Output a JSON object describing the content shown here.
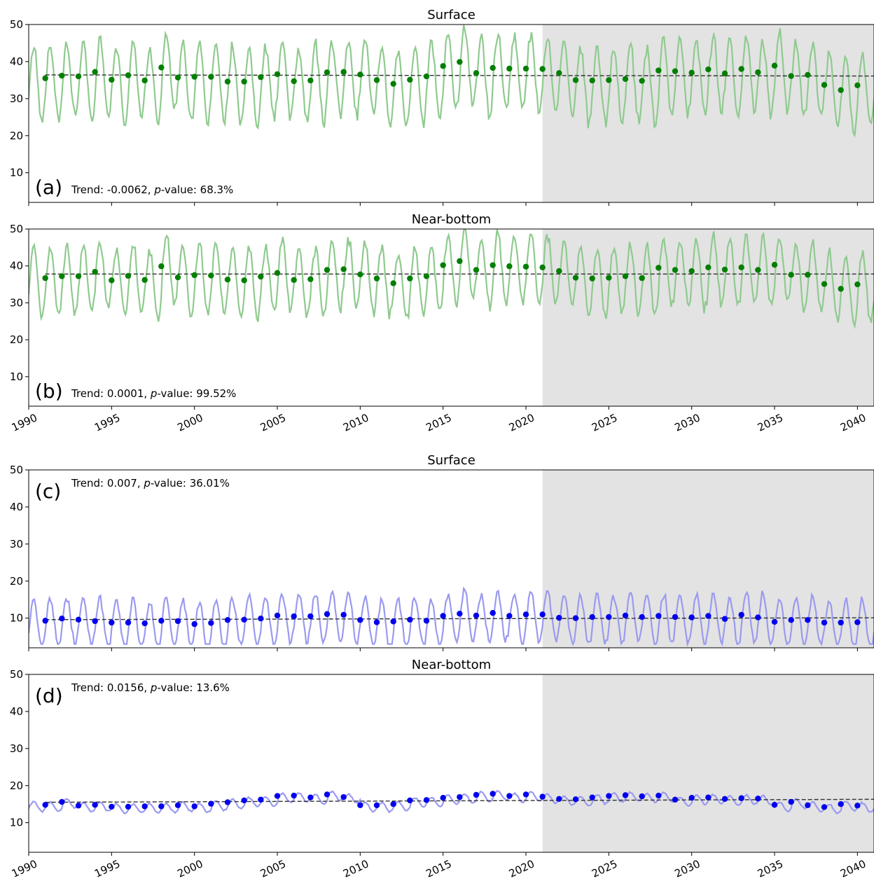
{
  "chart_data": [
    {
      "panel_label": "(a)",
      "type": "line",
      "title": "Surface",
      "ylim": [
        2,
        50
      ],
      "xlim": [
        1990,
        2041
      ],
      "yticks": [
        10,
        20,
        30,
        40,
        50
      ],
      "xticks": [
        1990,
        1995,
        2000,
        2005,
        2010,
        2015,
        2020,
        2025,
        2030,
        2035,
        2040
      ],
      "show_xtick_labels": false,
      "annotation": {
        "trend_prefix": "Trend: -0.0062, ",
        "p_italic": "p",
        "p_suffix": "-value: 68.3%"
      },
      "annotation_position": "bottom",
      "projection_start": 2021,
      "line_color": "#8fca8f",
      "dot_color": "#007f00",
      "monthly": {
        "mean": 35,
        "amplitude": 10
      },
      "trend_line": {
        "x": [
          1991,
          2041
        ],
        "y": [
          36.4,
          36.1
        ]
      },
      "annual_means": {
        "x": [
          1991,
          1992,
          1993,
          1994,
          1995,
          1996,
          1997,
          1998,
          1999,
          2000,
          2001,
          2002,
          2003,
          2004,
          2005,
          2006,
          2007,
          2008,
          2009,
          2010,
          2011,
          2012,
          2013,
          2014,
          2015,
          2016,
          2017,
          2018,
          2019,
          2020,
          2021,
          2022,
          2023,
          2024,
          2025,
          2026,
          2027,
          2028,
          2029,
          2030,
          2031,
          2032,
          2033,
          2034,
          2035,
          2036,
          2037,
          2038,
          2039,
          2040
        ],
        "y": [
          35.5,
          36.2,
          36.0,
          37.2,
          35.1,
          36.3,
          34.9,
          38.4,
          35.7,
          35.9,
          35.9,
          34.6,
          34.6,
          35.8,
          36.6,
          34.7,
          34.9,
          37.1,
          37.2,
          36.5,
          35.0,
          34.0,
          35.1,
          36.0,
          38.8,
          39.9,
          36.9,
          38.3,
          38.1,
          38.1,
          38.0,
          36.9,
          35.0,
          34.9,
          35.0,
          35.3,
          34.8,
          37.6,
          37.4,
          37.0,
          37.9,
          36.8,
          38.0,
          37.1,
          38.9,
          36.1,
          36.4,
          33.7,
          32.3,
          33.6
        ]
      }
    },
    {
      "panel_label": "(b)",
      "type": "line",
      "title": "Near-bottom",
      "ylim": [
        2,
        50
      ],
      "xlim": [
        1990,
        2041
      ],
      "yticks": [
        10,
        20,
        30,
        40,
        50
      ],
      "xticks": [
        1990,
        1995,
        2000,
        2005,
        2010,
        2015,
        2020,
        2025,
        2030,
        2035,
        2040
      ],
      "show_xtick_labels": true,
      "annotation": {
        "trend_prefix": "Trend: 0.0001, ",
        "p_italic": "p",
        "p_suffix": "-value: 99.52%"
      },
      "annotation_position": "bottom",
      "projection_start": 2021,
      "line_color": "#8fca8f",
      "dot_color": "#007f00",
      "monthly": {
        "mean": 37,
        "amplitude": 9
      },
      "trend_line": {
        "x": [
          1991,
          2041
        ],
        "y": [
          37.8,
          37.8
        ]
      },
      "annual_means": {
        "x": [
          1991,
          1992,
          1993,
          1994,
          1995,
          1996,
          1997,
          1998,
          1999,
          2000,
          2001,
          2002,
          2003,
          2004,
          2005,
          2006,
          2007,
          2008,
          2009,
          2010,
          2011,
          2012,
          2013,
          2014,
          2015,
          2016,
          2017,
          2018,
          2019,
          2020,
          2021,
          2022,
          2023,
          2024,
          2025,
          2026,
          2027,
          2028,
          2029,
          2030,
          2031,
          2032,
          2033,
          2034,
          2035,
          2036,
          2037,
          2038,
          2039,
          2040
        ],
        "y": [
          36.7,
          37.2,
          37.2,
          38.4,
          36.1,
          37.3,
          36.2,
          39.9,
          36.9,
          37.5,
          37.4,
          36.3,
          36.1,
          37.1,
          38.1,
          36.2,
          36.4,
          38.9,
          39.1,
          37.7,
          36.6,
          35.3,
          36.6,
          37.2,
          40.2,
          41.3,
          38.9,
          40.2,
          39.9,
          39.8,
          39.6,
          38.6,
          36.8,
          36.6,
          36.8,
          37.2,
          36.7,
          39.5,
          38.9,
          38.6,
          39.6,
          39.0,
          39.6,
          38.9,
          40.3,
          37.6,
          37.6,
          35.1,
          33.8,
          35.0
        ]
      }
    },
    {
      "panel_label": "(c)",
      "type": "line",
      "title": "Surface",
      "ylim": [
        2,
        50
      ],
      "xlim": [
        1990,
        2041
      ],
      "yticks": [
        10,
        20,
        30,
        40,
        50
      ],
      "xticks": [
        1990,
        1995,
        2000,
        2005,
        2010,
        2015,
        2020,
        2025,
        2030,
        2035,
        2040
      ],
      "show_xtick_labels": false,
      "annotation": {
        "trend_prefix": "Trend: 0.007, ",
        "p_italic": "p",
        "p_suffix": "-value: 36.01%"
      },
      "annotation_position": "top",
      "projection_start": 2021,
      "line_color": "#9a9af0",
      "dot_color": "#0000ee",
      "monthly": {
        "mean": 9.3,
        "amplitude": 6.5
      },
      "trend_line": {
        "x": [
          1991,
          2041
        ],
        "y": [
          9.6,
          10.1
        ]
      },
      "annual_means": {
        "x": [
          1991,
          1992,
          1993,
          1994,
          1995,
          1996,
          1997,
          1998,
          1999,
          2000,
          2001,
          2002,
          2003,
          2004,
          2005,
          2006,
          2007,
          2008,
          2009,
          2010,
          2011,
          2012,
          2013,
          2014,
          2015,
          2016,
          2017,
          2018,
          2019,
          2020,
          2021,
          2022,
          2023,
          2024,
          2025,
          2026,
          2027,
          2028,
          2029,
          2030,
          2031,
          2032,
          2033,
          2034,
          2035,
          2036,
          2037,
          2038,
          2039,
          2040
        ],
        "y": [
          9.3,
          9.9,
          9.6,
          9.2,
          8.8,
          8.8,
          8.6,
          9.3,
          9.2,
          8.4,
          8.7,
          9.5,
          9.6,
          9.9,
          10.7,
          10.5,
          10.5,
          11.1,
          10.9,
          9.5,
          8.9,
          9.1,
          9.6,
          9.3,
          10.6,
          11.2,
          10.7,
          11.4,
          10.6,
          11.0,
          11.0,
          10.1,
          10.0,
          10.3,
          10.3,
          10.7,
          10.3,
          10.6,
          10.3,
          10.2,
          10.6,
          9.8,
          10.9,
          10.2,
          9.0,
          9.5,
          9.5,
          8.8,
          8.8,
          8.9
        ]
      }
    },
    {
      "panel_label": "(d)",
      "type": "line",
      "title": "Near-bottom",
      "ylim": [
        2,
        50
      ],
      "xlim": [
        1990,
        2041
      ],
      "yticks": [
        10,
        20,
        30,
        40,
        50
      ],
      "xticks": [
        1990,
        1995,
        2000,
        2005,
        2010,
        2015,
        2020,
        2025,
        2030,
        2035,
        2040
      ],
      "show_xtick_labels": true,
      "annotation": {
        "trend_prefix": "Trend: 0.0156, ",
        "p_italic": "p",
        "p_suffix": "-value: 13.6%"
      },
      "annotation_position": "top",
      "projection_start": 2021,
      "line_color": "#9a9af0",
      "dot_color": "#0000ee",
      "monthly": {
        "mean": 15.5,
        "amplitude": 1.2
      },
      "trend_line": {
        "x": [
          1991,
          2041
        ],
        "y": [
          15.5,
          16.3
        ]
      },
      "annual_means": {
        "x": [
          1991,
          1992,
          1993,
          1994,
          1995,
          1996,
          1997,
          1998,
          1999,
          2000,
          2001,
          2002,
          2003,
          2004,
          2005,
          2006,
          2007,
          2008,
          2009,
          2010,
          2011,
          2012,
          2013,
          2014,
          2015,
          2016,
          2017,
          2018,
          2019,
          2020,
          2021,
          2022,
          2023,
          2024,
          2025,
          2026,
          2027,
          2028,
          2029,
          2030,
          2031,
          2032,
          2033,
          2034,
          2035,
          2036,
          2037,
          2038,
          2039,
          2040
        ],
        "y": [
          14.8,
          15.6,
          14.6,
          14.8,
          14.3,
          14.3,
          14.4,
          14.4,
          14.7,
          14.4,
          15.1,
          15.5,
          16.0,
          16.2,
          17.2,
          17.3,
          16.8,
          17.6,
          16.9,
          14.7,
          14.7,
          15.0,
          16.0,
          16.1,
          16.7,
          16.9,
          17.5,
          17.8,
          17.2,
          17.6,
          17.0,
          16.4,
          16.3,
          16.8,
          17.2,
          17.4,
          17.1,
          17.3,
          16.2,
          16.7,
          16.8,
          16.4,
          16.6,
          16.5,
          14.8,
          15.6,
          14.7,
          14.2,
          15.0,
          14.6
        ]
      }
    }
  ]
}
